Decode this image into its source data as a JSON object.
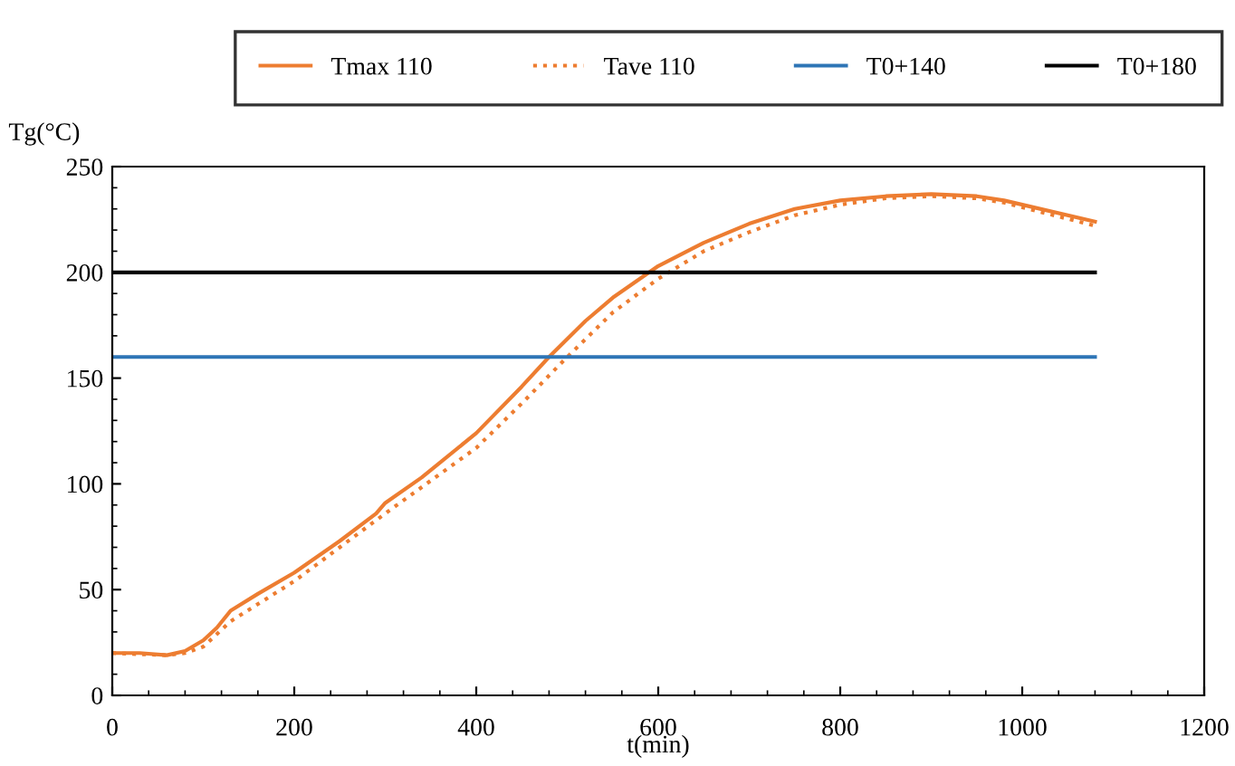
{
  "chart_data": {
    "type": "line",
    "xlabel": "t(min)",
    "ylabel": "Tg(°C)",
    "xlim": [
      0,
      1200
    ],
    "xticks": [
      0,
      200,
      400,
      600,
      800,
      1000,
      1200
    ],
    "ylim": [
      0,
      250
    ],
    "yticks": [
      0,
      50,
      100,
      150,
      200,
      250
    ],
    "grid": false,
    "legend": "top",
    "marker": "none",
    "series": [
      {
        "name": "Tmax 110",
        "color": "#ed7d31",
        "line_style": "solid",
        "x": [
          0,
          30,
          60,
          80,
          100,
          115,
          130,
          160,
          200,
          250,
          290,
          300,
          340,
          400,
          450,
          480,
          520,
          550,
          600,
          650,
          700,
          750,
          800,
          850,
          900,
          950,
          980,
          1080
        ],
        "values": [
          20,
          20,
          19,
          21,
          26,
          32,
          40,
          48,
          58,
          73,
          86,
          91,
          103,
          124,
          146,
          160,
          177,
          188,
          203,
          214,
          223,
          230,
          234,
          236,
          237,
          236,
          234,
          224
        ]
      },
      {
        "name": "Tave 110",
        "color": "#ed7d31",
        "line_style": "dotted",
        "x": [
          0,
          60,
          80,
          100,
          130,
          200,
          300,
          400,
          450,
          500,
          550,
          600,
          650,
          700,
          750,
          800,
          850,
          900,
          950,
          980,
          1080
        ],
        "values": [
          20,
          19,
          20,
          23,
          35,
          54,
          86,
          117,
          138,
          160,
          181,
          197,
          210,
          219,
          227,
          232,
          235,
          236,
          235,
          233,
          222
        ]
      },
      {
        "name": "T0+140",
        "color": "#2e75b6",
        "line_style": "solid",
        "x": [
          0,
          1080
        ],
        "values": [
          160,
          160
        ]
      },
      {
        "name": "T0+180",
        "color": "#000000",
        "line_style": "solid",
        "x": [
          0,
          1080
        ],
        "values": [
          200,
          200
        ]
      }
    ]
  }
}
